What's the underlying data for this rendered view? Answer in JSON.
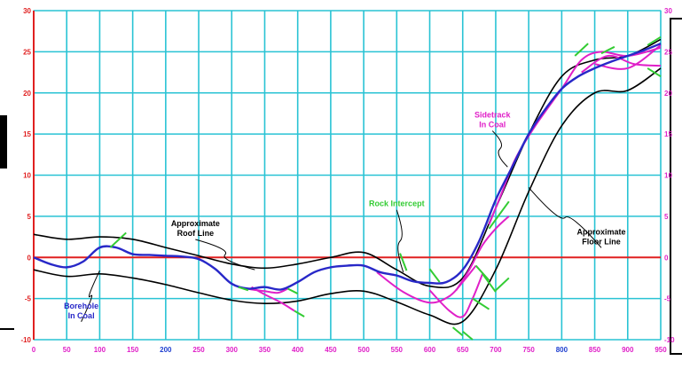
{
  "colors": {
    "grid": "#29c3d4",
    "axis": "#e02020",
    "tick_left": "#e02020",
    "tick_right": "#e020c8",
    "tick_x": "#e020c8",
    "tick_x_emph": "#2040d0",
    "boundary": "#000000",
    "borehole": "#2828c8",
    "sidetrack": "#e020c8",
    "intercept": "#33cc33",
    "label_black": "#000000",
    "label_blue": "#2828c8",
    "label_magenta": "#e020c8",
    "label_green": "#33cc33"
  },
  "chart_data": {
    "type": "line",
    "xlim": [
      0,
      950
    ],
    "ylim": [
      -10,
      30
    ],
    "x_ticks": [
      0,
      50,
      100,
      150,
      200,
      250,
      300,
      350,
      400,
      450,
      500,
      550,
      600,
      650,
      700,
      750,
      800,
      850,
      900,
      950
    ],
    "x_tick_labels": [
      "0",
      "50",
      "100",
      "150",
      "200",
      "250",
      "300",
      "350",
      "400",
      "450",
      "500",
      "550",
      "600",
      "650",
      "700",
      "750",
      "800",
      "850",
      "900",
      "950"
    ],
    "y_ticks": [
      -10,
      -5,
      0,
      5,
      10,
      15,
      20,
      25,
      30
    ],
    "y_tick_labels": [
      "-10",
      "-5",
      "0",
      "5",
      "10",
      "15",
      "20",
      "25",
      "30"
    ],
    "grid": true,
    "series": [
      {
        "key": "roof",
        "x": [
          0,
          50,
          100,
          150,
          200,
          250,
          300,
          350,
          400,
          450,
          500,
          550,
          600,
          650,
          700,
          750,
          800,
          850,
          900,
          950
        ],
        "y": [
          2.8,
          2.2,
          2.5,
          2.2,
          1.2,
          0.2,
          -0.8,
          -1.3,
          -0.8,
          0,
          0.6,
          -1.5,
          -3.5,
          -2.5,
          6,
          15,
          22,
          24,
          24.5,
          26.5
        ]
      },
      {
        "key": "floor",
        "x": [
          0,
          50,
          100,
          150,
          200,
          250,
          300,
          350,
          400,
          450,
          500,
          550,
          600,
          650,
          700,
          750,
          800,
          850,
          900,
          950
        ],
        "y": [
          -1.5,
          -2.3,
          -2.0,
          -2.5,
          -3.3,
          -4.3,
          -5.2,
          -5.6,
          -5.3,
          -4.4,
          -4.1,
          -5.4,
          -7,
          -7.8,
          -1.5,
          8,
          16,
          20,
          20.3,
          23
        ]
      },
      {
        "key": "borehole",
        "x": [
          0,
          25,
          50,
          75,
          100,
          125,
          150,
          175,
          200,
          225,
          250,
          275,
          300,
          325,
          350,
          375,
          400,
          425,
          450,
          475,
          500,
          525,
          550,
          575,
          600,
          625,
          650,
          675,
          700,
          725,
          750,
          775,
          800,
          825,
          850,
          875,
          900,
          925,
          950
        ],
        "y": [
          0,
          -0.8,
          -1.2,
          -0.5,
          1.2,
          1.2,
          0.4,
          0.3,
          0.2,
          0.1,
          -0.2,
          -1.4,
          -3.2,
          -3.8,
          -3.6,
          -3.9,
          -3.0,
          -1.8,
          -1.2,
          -1.0,
          -1.0,
          -1.8,
          -2.2,
          -2.9,
          -3.1,
          -3.0,
          -1.5,
          2.0,
          7.0,
          11.0,
          15.0,
          18.0,
          20.5,
          22.0,
          23.0,
          23.8,
          24.5,
          25.2,
          26.0
        ]
      },
      {
        "key": "sidetrack",
        "paths": [
          {
            "x": [
              310,
              330,
              350,
              370,
              385
            ],
            "y": [
              -3.6,
              -3.9,
              -4.1,
              -4.3,
              -3.8
            ]
          },
          {
            "x": [
              330,
              350,
              375,
              395
            ],
            "y": [
              -3.6,
              -4.5,
              -5.5,
              -6.5
            ]
          },
          {
            "x": [
              520,
              560,
              600,
              630,
              650,
              670
            ],
            "y": [
              -1.8,
              -4.2,
              -5.5,
              -4.7,
              -3.0,
              -1.0
            ]
          },
          {
            "x": [
              600,
              630,
              650,
              665,
              680
            ],
            "y": [
              -4.0,
              -6.5,
              -7.2,
              -5.0,
              -2.0
            ]
          },
          {
            "x": [
              640,
              660,
              680,
              700,
              720
            ],
            "y": [
              -4.0,
              -1.5,
              1.5,
              3.5,
              5.0
            ]
          },
          {
            "x": [
              690,
              710,
              730,
              760,
              800,
              830,
              860,
              900,
              950
            ],
            "y": [
              4.0,
              8.0,
              12.0,
              16.0,
              20.5,
              24.0,
              25.0,
              24.5,
              25.5
            ]
          },
          {
            "x": [
              830,
              870,
              910,
              950
            ],
            "y": [
              22.5,
              24.5,
              23.5,
              23.3
            ]
          },
          {
            "x": [
              850,
              900,
              950
            ],
            "y": [
              23.5,
              23.0,
              25.8
            ]
          }
        ]
      },
      {
        "key": "intercept",
        "segments": [
          {
            "x": [
              116,
              140
            ],
            "y": [
              1.2,
              3.0
            ]
          },
          {
            "x": [
              310,
              325
            ],
            "y": [
              -3.6,
              -4.0
            ]
          },
          {
            "x": [
              385,
              400
            ],
            "y": [
              -3.8,
              -4.4
            ]
          },
          {
            "x": [
              395,
              410
            ],
            "y": [
              -6.5,
              -7.2
            ]
          },
          {
            "x": [
              555,
              565
            ],
            "y": [
              0.5,
              -1.6
            ]
          },
          {
            "x": [
              600,
              615
            ],
            "y": [
              -1.4,
              -3.0
            ]
          },
          {
            "x": [
              670,
              690
            ],
            "y": [
              -1.0,
              -2.8
            ]
          },
          {
            "x": [
              690,
              720
            ],
            "y": [
              3.5,
              6.8
            ]
          },
          {
            "x": [
              680,
              700
            ],
            "y": [
              -2.0,
              -4.2
            ]
          },
          {
            "x": [
              635,
              650
            ],
            "y": [
              -8.5,
              -9.5
            ]
          },
          {
            "x": [
              665,
              690
            ],
            "y": [
              -5.0,
              -6.3
            ]
          },
          {
            "x": [
              700,
              720
            ],
            "y": [
              -4.0,
              -2.5
            ]
          },
          {
            "x": [
              650,
              665
            ],
            "y": [
              -9.0,
              -10.0
            ]
          },
          {
            "x": [
              820,
              840
            ],
            "y": [
              24.5,
              26.0
            ]
          },
          {
            "x": [
              860,
              880
            ],
            "y": [
              24.8,
              25.6
            ]
          },
          {
            "x": [
              930,
              950
            ],
            "y": [
              25.8,
              26.8
            ]
          },
          {
            "x": [
              930,
              950
            ],
            "y": [
              23.0,
              22.0
            ]
          }
        ]
      }
    ],
    "annotations": [
      {
        "key": "roof",
        "lines": [
          "Approximate",
          "Roof Line"
        ],
        "x": 245,
        "y": 3.8,
        "arrow_to": [
          335,
          -1.5
        ],
        "color_key": "label_black"
      },
      {
        "key": "borehole",
        "lines": [
          "Borehole",
          "In Coal"
        ],
        "x": 72,
        "y": -6.2,
        "arrow_to": [
          100,
          -1.6
        ],
        "color_key": "label_blue"
      },
      {
        "key": "rock",
        "lines": [
          "Rock Intercept"
        ],
        "x": 550,
        "y": 6.2,
        "arrow_to": [
          560,
          -1.8
        ],
        "color_key": "label_green"
      },
      {
        "key": "sidetrack",
        "lines": [
          "Sidetrack",
          "In Coal"
        ],
        "x": 695,
        "y": 17.0,
        "arrow_to": [
          718,
          11.0
        ],
        "color_key": "label_magenta"
      },
      {
        "key": "floor",
        "lines": [
          "Approximate",
          "Floor Line"
        ],
        "x": 860,
        "y": 2.8,
        "arrow_to": [
          750,
          8.5
        ],
        "color_key": "label_black"
      }
    ]
  }
}
